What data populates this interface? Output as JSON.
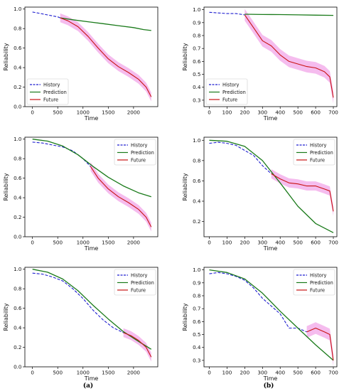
{
  "colors": {
    "history": "#1f1fd0",
    "prediction": "#1a7a1a",
    "future": "#c81414",
    "band": "#f2a6e8"
  },
  "captions": [
    "(a)",
    "(b)"
  ],
  "chart_data": [
    {
      "type": "line",
      "panel": "a-top",
      "xlabel": "Time",
      "ylabel": "Reliability",
      "xlim": [
        -150,
        2480
      ],
      "ylim": [
        0,
        1.02
      ],
      "xticks": [
        0,
        500,
        1000,
        1500,
        2000
      ],
      "yticks": [
        0.0,
        0.2,
        0.4,
        0.6,
        0.8,
        1.0
      ],
      "legend": "lower-left",
      "series": [
        {
          "name": "History",
          "style": "dashed",
          "x": [
            0,
            100,
            200,
            300,
            400,
            500,
            550
          ],
          "y": [
            0.97,
            0.96,
            0.95,
            0.94,
            0.93,
            0.92,
            0.91
          ]
        },
        {
          "name": "Prediction",
          "style": "solid",
          "x": [
            550,
            800,
            1100,
            1400,
            1700,
            2000,
            2200,
            2350
          ],
          "y": [
            0.91,
            0.89,
            0.87,
            0.85,
            0.83,
            0.81,
            0.79,
            0.78
          ]
        },
        {
          "name": "Future",
          "style": "solid",
          "x": [
            550,
            700,
            900,
            1100,
            1300,
            1500,
            1700,
            1900,
            2100,
            2250,
            2350
          ],
          "y": [
            0.91,
            0.88,
            0.82,
            0.72,
            0.6,
            0.49,
            0.41,
            0.35,
            0.28,
            0.2,
            0.1
          ]
        }
      ]
    },
    {
      "type": "line",
      "panel": "b-top",
      "xlabel": "Time",
      "ylabel": "Reliability",
      "xlim": [
        -30,
        720
      ],
      "ylim": [
        0.25,
        1.02
      ],
      "xticks": [
        0,
        100,
        200,
        300,
        400,
        500,
        600,
        700
      ],
      "yticks": [
        0.3,
        0.4,
        0.5,
        0.6,
        0.7,
        0.8,
        0.9,
        1.0
      ],
      "legend": "lower-left",
      "series": [
        {
          "name": "History",
          "style": "dashed",
          "x": [
            0,
            50,
            100,
            150,
            200
          ],
          "y": [
            0.98,
            0.975,
            0.97,
            0.97,
            0.96
          ]
        },
        {
          "name": "Prediction",
          "style": "solid",
          "x": [
            200,
            300,
            400,
            500,
            600,
            700
          ],
          "y": [
            0.965,
            0.963,
            0.962,
            0.96,
            0.958,
            0.956
          ]
        },
        {
          "name": "Future",
          "style": "solid",
          "x": [
            200,
            250,
            300,
            350,
            400,
            450,
            500,
            550,
            600,
            650,
            680,
            700
          ],
          "y": [
            0.96,
            0.86,
            0.76,
            0.72,
            0.65,
            0.6,
            0.58,
            0.56,
            0.55,
            0.52,
            0.48,
            0.32
          ]
        }
      ]
    },
    {
      "type": "line",
      "panel": "a-middle",
      "xlabel": "Time",
      "ylabel": "Reliability",
      "xlim": [
        -150,
        2480
      ],
      "ylim": [
        0,
        1.02
      ],
      "xticks": [
        0,
        500,
        1000,
        1500,
        2000
      ],
      "yticks": [
        0.0,
        0.2,
        0.4,
        0.6,
        0.8,
        1.0
      ],
      "legend": "top-right",
      "series": [
        {
          "name": "History",
          "style": "dashed",
          "x": [
            0,
            200,
            400,
            600,
            800,
            1000,
            1150
          ],
          "y": [
            0.97,
            0.96,
            0.94,
            0.92,
            0.88,
            0.8,
            0.72
          ]
        },
        {
          "name": "Prediction",
          "style": "solid",
          "x": [
            0,
            300,
            600,
            900,
            1200,
            1500,
            1800,
            2100,
            2350
          ],
          "y": [
            1.0,
            0.98,
            0.93,
            0.84,
            0.72,
            0.61,
            0.52,
            0.45,
            0.41
          ]
        },
        {
          "name": "Future",
          "style": "solid",
          "x": [
            1150,
            1300,
            1500,
            1700,
            1900,
            2100,
            2250,
            2350
          ],
          "y": [
            0.72,
            0.6,
            0.49,
            0.41,
            0.35,
            0.28,
            0.2,
            0.1
          ]
        }
      ]
    },
    {
      "type": "line",
      "panel": "b-middle",
      "xlabel": "Time",
      "ylabel": "Reliability",
      "xlim": [
        -30,
        720
      ],
      "ylim": [
        0.05,
        1.03
      ],
      "xticks": [
        0,
        100,
        200,
        300,
        400,
        500,
        600,
        700
      ],
      "yticks": [
        0.2,
        0.4,
        0.6,
        0.8,
        1.0
      ],
      "legend": "top-right",
      "series": [
        {
          "name": "History",
          "style": "dashed",
          "x": [
            0,
            50,
            100,
            150,
            200,
            250,
            300,
            350
          ],
          "y": [
            0.97,
            0.98,
            0.97,
            0.95,
            0.9,
            0.85,
            0.75,
            0.67
          ]
        },
        {
          "name": "Prediction",
          "style": "solid",
          "x": [
            0,
            100,
            200,
            300,
            400,
            500,
            600,
            700
          ],
          "y": [
            1.0,
            0.99,
            0.94,
            0.8,
            0.58,
            0.35,
            0.18,
            0.09
          ]
        },
        {
          "name": "Future",
          "style": "solid",
          "x": [
            350,
            400,
            450,
            500,
            550,
            600,
            650,
            680,
            700
          ],
          "y": [
            0.67,
            0.62,
            0.58,
            0.57,
            0.55,
            0.55,
            0.52,
            0.5,
            0.3
          ]
        }
      ]
    },
    {
      "type": "line",
      "panel": "a-bottom",
      "xlabel": "Time",
      "ylabel": "Reliability",
      "xlim": [
        -150,
        2480
      ],
      "ylim": [
        0,
        1.02
      ],
      "xticks": [
        0,
        500,
        1000,
        1500,
        2000
      ],
      "yticks": [
        0.0,
        0.2,
        0.4,
        0.6,
        0.8,
        1.0
      ],
      "legend": "top-right",
      "series": [
        {
          "name": "History",
          "style": "dashed",
          "x": [
            0,
            200,
            400,
            600,
            800,
            1000,
            1200,
            1400,
            1600,
            1800
          ],
          "y": [
            0.96,
            0.95,
            0.92,
            0.88,
            0.8,
            0.7,
            0.58,
            0.48,
            0.4,
            0.35
          ]
        },
        {
          "name": "Prediction",
          "style": "solid",
          "x": [
            0,
            300,
            600,
            900,
            1200,
            1500,
            1800,
            2100,
            2350
          ],
          "y": [
            1.0,
            0.97,
            0.9,
            0.78,
            0.63,
            0.49,
            0.36,
            0.26,
            0.18
          ]
        },
        {
          "name": "Future",
          "style": "solid",
          "x": [
            1800,
            1950,
            2100,
            2250,
            2350
          ],
          "y": [
            0.35,
            0.32,
            0.27,
            0.2,
            0.1
          ]
        }
      ]
    },
    {
      "type": "line",
      "panel": "b-bottom",
      "xlabel": "Time",
      "ylabel": "Reliability",
      "xlim": [
        -30,
        720
      ],
      "ylim": [
        0.25,
        1.02
      ],
      "xticks": [
        0,
        100,
        200,
        300,
        400,
        500,
        600,
        700
      ],
      "yticks": [
        0.3,
        0.4,
        0.5,
        0.6,
        0.7,
        0.8,
        0.9,
        1.0
      ],
      "legend": "top-right",
      "series": [
        {
          "name": "History",
          "style": "dashed",
          "x": [
            0,
            50,
            100,
            150,
            200,
            250,
            300,
            350,
            400,
            450,
            500,
            550
          ],
          "y": [
            0.97,
            0.98,
            0.97,
            0.95,
            0.92,
            0.86,
            0.78,
            0.72,
            0.66,
            0.55,
            0.55,
            0.52
          ]
        },
        {
          "name": "Prediction",
          "style": "solid",
          "x": [
            0,
            100,
            200,
            300,
            400,
            500,
            600,
            700
          ],
          "y": [
            1.0,
            0.98,
            0.93,
            0.82,
            0.68,
            0.55,
            0.42,
            0.3
          ]
        },
        {
          "name": "Future",
          "style": "solid",
          "x": [
            550,
            600,
            650,
            680,
            700
          ],
          "y": [
            0.52,
            0.55,
            0.52,
            0.5,
            0.3
          ]
        }
      ]
    }
  ]
}
